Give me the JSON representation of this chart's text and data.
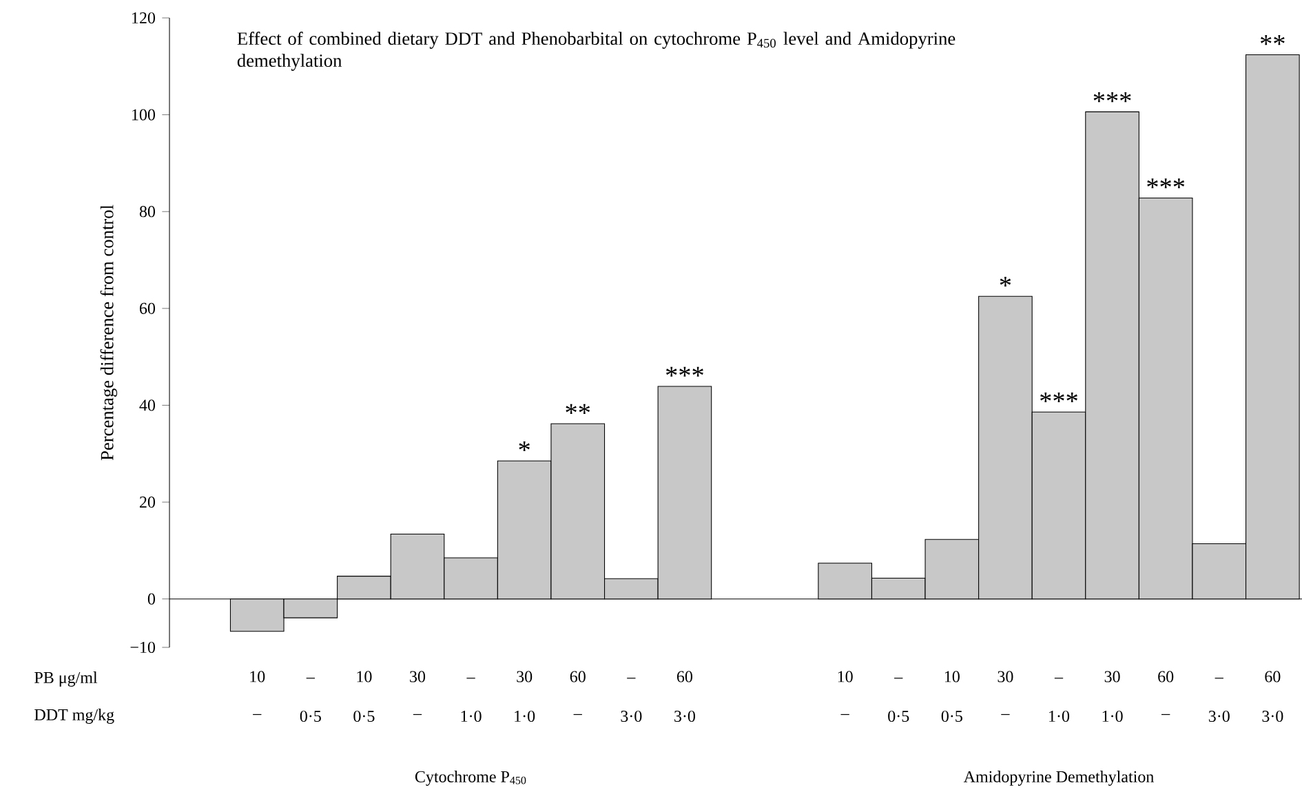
{
  "chart_data": {
    "type": "bar",
    "title": "Effect of combined dietary DDT and Phenobarbital on cytochrome P$_{450}$ level and Amidopyrine demethylation",
    "ylabel": "Percentage difference from control",
    "categories": [
      "10",
      "–",
      "10",
      "30",
      "–",
      "30",
      "60",
      "–",
      "60",
      null,
      null,
      "10",
      "–",
      "10",
      "30",
      "–",
      "30",
      "60",
      "–",
      "60"
    ],
    "values": [
      -6.7,
      -3.9,
      4.7,
      13.4,
      8.5,
      28.5,
      36.2,
      4.2,
      43.9,
      null,
      null,
      7.4,
      4.3,
      12.3,
      62.5,
      38.6,
      100.6,
      82.8,
      11.4,
      112.4
    ],
    "value_labels": [
      null,
      null,
      null,
      null,
      null,
      "*",
      "**",
      null,
      "***",
      null,
      null,
      null,
      null,
      null,
      "*",
      "***",
      "***",
      "***",
      null,
      "**"
    ],
    "color": "#c8c8c8",
    "ylim": [
      -10,
      120
    ],
    "yticks": [
      {
        "value": -10,
        "label": "−10"
      },
      0,
      20,
      40,
      60,
      80,
      100,
      120
    ],
    "annotations": [
      "PB μg/ml",
      "DDT mg/kg",
      "–",
      "0·5",
      "0·5",
      "–",
      "1·0",
      "1·0",
      "–",
      "3·0",
      "3·0",
      "–",
      "0·5",
      "0·5",
      "–",
      "1·0",
      "1·0",
      "–",
      "3·0",
      "3·0",
      "Cytochrome P$_{450}$",
      "Amidopyrine Demethylation"
    ]
  }
}
